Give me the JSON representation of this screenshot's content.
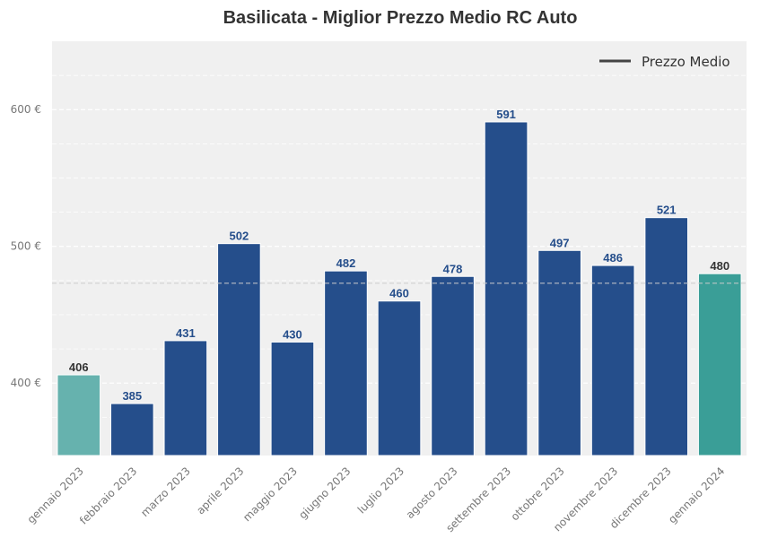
{
  "chart_data": {
    "type": "bar",
    "title": "Basilicata - Miglior Prezzo Medio RC Auto",
    "xlabel": "",
    "ylabel": "",
    "categories": [
      "gennaio 2023",
      "febbraio 2023",
      "marzo 2023",
      "aprile 2023",
      "maggio 2023",
      "giugno 2023",
      "luglio 2023",
      "agosto 2023",
      "settembre 2023",
      "ottobre 2023",
      "novembre 2023",
      "dicembre 2023",
      "gennaio 2024"
    ],
    "values": [
      406,
      385,
      431,
      502,
      430,
      482,
      460,
      478,
      591,
      497,
      486,
      521,
      480
    ],
    "value_labels": [
      "406",
      "385",
      "431",
      "502",
      "430",
      "482",
      "460",
      "478",
      "591",
      "497",
      "486",
      "521",
      "480"
    ],
    "bar_colors": [
      "#66b2ae",
      "#254e8b",
      "#254e8b",
      "#254e8b",
      "#254e8b",
      "#254e8b",
      "#254e8b",
      "#254e8b",
      "#254e8b",
      "#254e8b",
      "#254e8b",
      "#254e8b",
      "#3a9e97"
    ],
    "label_colors": [
      "#333333",
      "#254e8b",
      "#254e8b",
      "#254e8b",
      "#254e8b",
      "#254e8b",
      "#254e8b",
      "#254e8b",
      "#254e8b",
      "#254e8b",
      "#254e8b",
      "#254e8b",
      "#333333"
    ],
    "ylim": [
      347,
      650
    ],
    "yticks": [
      400,
      500,
      600
    ],
    "ytick_labels": [
      "400 €",
      "500 €",
      "600 €"
    ],
    "reference_line": {
      "name": "Prezzo Medio",
      "value": 473,
      "color": "#cccccc"
    },
    "legend": {
      "position": "top-right",
      "entries": [
        "Prezzo Medio"
      ],
      "line_color": "#444444"
    },
    "grid": true,
    "background": "#f0f0f0"
  }
}
